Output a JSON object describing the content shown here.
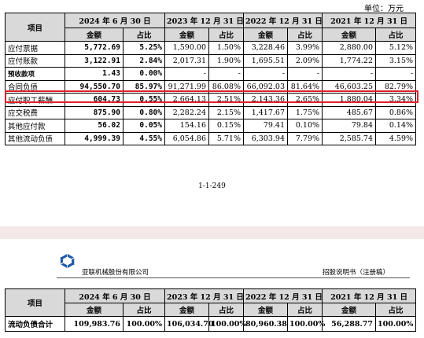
{
  "unit": "单位：万元",
  "table1": {
    "item_header": "项目",
    "periods": [
      "2024 年 6 月 30 日",
      "2023 年 12 月 31 日",
      "2022 年 12 月 31 日",
      "2021 年 12 月 31 日"
    ],
    "subheaders": [
      "金额",
      "占比"
    ],
    "rows": [
      {
        "label": "应付票据",
        "values": [
          "5,772.69",
          "5.25%",
          "1,590.00",
          "1.50%",
          "3,228.46",
          "3.99%",
          "2,880.00",
          "5.12%"
        ]
      },
      {
        "label": "应付账款",
        "values": [
          "3,122.91",
          "2.84%",
          "2,017.31",
          "1.90%",
          "1,695.51",
          "2.09%",
          "1,774.22",
          "3.15%"
        ]
      },
      {
        "label": "预收款项",
        "values": [
          "1.43",
          "0.00%",
          "-",
          "-",
          "-",
          "-",
          "-",
          "-"
        ]
      },
      {
        "label": "合同负债",
        "values": [
          "94,550.70",
          "85.97%",
          "91,271.99",
          "86.08%",
          "66,092.03",
          "81.64%",
          "46,603.25",
          "82.79%"
        ]
      },
      {
        "label": "应付职工薪酬",
        "values": [
          "604.73",
          "0.55%",
          "2,664.13",
          "2.51%",
          "2,143.36",
          "2.65%",
          "1,880.04",
          "3.34%"
        ]
      },
      {
        "label": "应交税费",
        "values": [
          "875.90",
          "0.80%",
          "2,282.24",
          "2.15%",
          "1,417.67",
          "1.75%",
          "485.67",
          "0.86%"
        ]
      },
      {
        "label": "其他应付款",
        "values": [
          "56.02",
          "0.05%",
          "154.16",
          "0.15%",
          "79.41",
          "0.10%",
          "79.84",
          "0.14%"
        ]
      },
      {
        "label": "其他流动负债",
        "values": [
          "4,999.39",
          "4.55%",
          "6,054.86",
          "5.71%",
          "6,303.94",
          "7.79%",
          "2,585.74",
          "4.59%"
        ]
      }
    ]
  },
  "page_number": "1-1-249",
  "header": {
    "company": "亚联机械股份有限公司",
    "doc_title": "招股说明书（注册稿）",
    "logo": "company-logo-icon",
    "logo_color": "#1e5aa8"
  },
  "table2": {
    "item_header": "项目",
    "periods": [
      "2024 年 6 月 30 日",
      "2023 年 12 月 31 日",
      "2022 年 12 月 31 日",
      "2021 年 12 月 31 日"
    ],
    "subheaders": [
      "金额",
      "占比"
    ],
    "rows": [
      {
        "label": "流动负债合计",
        "values": [
          "109,983.76",
          "100.00%",
          "106,034.70",
          "100.00%",
          "80,960.38",
          "100.00%",
          "56,288.77",
          "100.00%"
        ]
      }
    ]
  },
  "highlight_color": "#e0202a"
}
